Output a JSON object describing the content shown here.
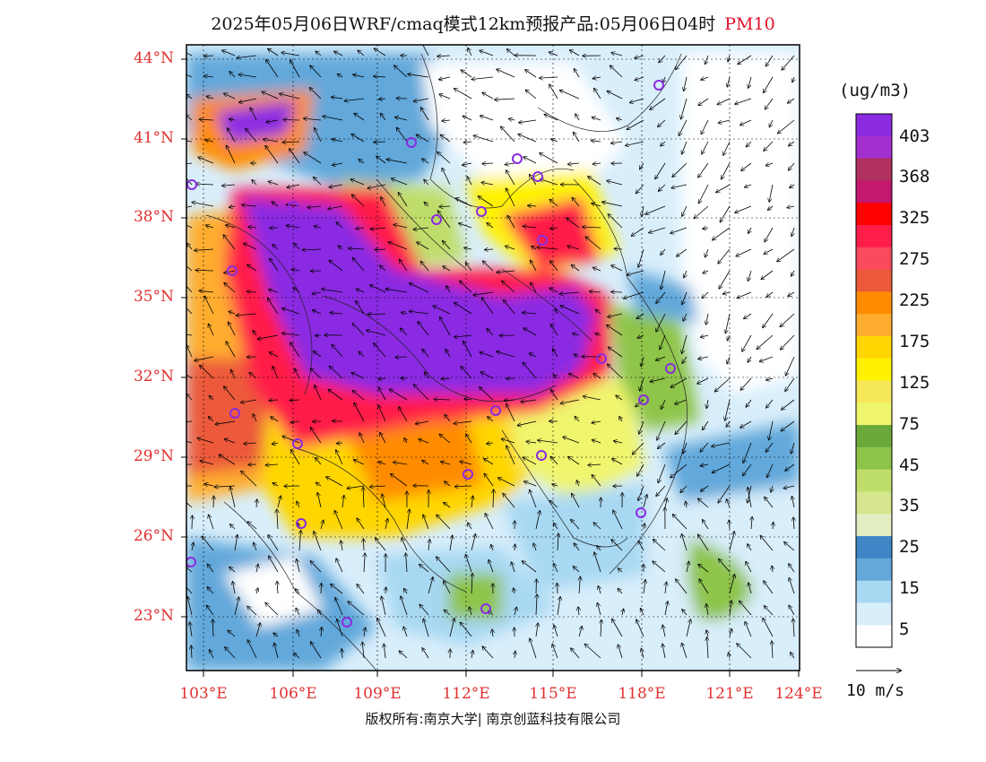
{
  "title": {
    "main": "2025年05月06日WRF/cmaq模式12km预报产品:05月06日04时",
    "pollutant": "PM10"
  },
  "axes": {
    "lat_labels": [
      "44°N",
      "41°N",
      "38°N",
      "35°N",
      "32°N",
      "29°N",
      "26°N",
      "23°N"
    ],
    "lon_labels": [
      "103°E",
      "106°E",
      "109°E",
      "112°E",
      "115°E",
      "118°E",
      "121°E",
      "124°E"
    ]
  },
  "colorbar": {
    "unit": "(ug/m3)",
    "labels": [
      "403",
      "368",
      "325",
      "275",
      "225",
      "175",
      "125",
      "75",
      "45",
      "35",
      "25",
      "15",
      "5"
    ],
    "colors": [
      "#8a2be2",
      "#a42fcf",
      "#b03060",
      "#c4176e",
      "#ff0000",
      "#ff1e4a",
      "#f94a5e",
      "#ec5a3a",
      "#ff8c00",
      "#ffad2e",
      "#ffd600",
      "#fff200",
      "#f5e65a",
      "#f0f56e",
      "#6aa83a",
      "#8ec44a",
      "#bfdd6a",
      "#d5e68e",
      "#e2edc2",
      "#3e86c6",
      "#62a8da",
      "#a8d8f2",
      "#d8eefb",
      "#ffffff"
    ]
  },
  "wind_reference": "10 m/s",
  "credit": "版权所有:南京大学| 南京创蓝科技有限公司"
}
